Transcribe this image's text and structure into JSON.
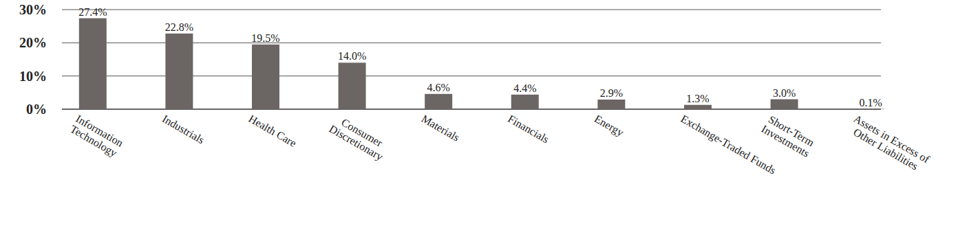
{
  "chart_data": {
    "type": "bar",
    "categories": [
      "Information\nTechnology",
      "Industrials",
      "Health Care",
      "Consumer\nDiscretionary",
      "Materials",
      "Financials",
      "Energy",
      "Exchange-Traded Funds",
      "Short-Term\nInvestments",
      "Assets in Excess of\nOther Liabilities"
    ],
    "values": [
      27.4,
      22.8,
      19.5,
      14.0,
      4.6,
      4.4,
      2.9,
      1.3,
      3.0,
      0.1
    ],
    "value_labels": [
      "27.4%",
      "22.8%",
      "19.5%",
      "14.0%",
      "4.6%",
      "4.4%",
      "2.9%",
      "1.3%",
      "3.0%",
      "0.1%"
    ],
    "color": "#6b6563",
    "ylim": [
      0,
      30
    ],
    "yticks": [
      {
        "value": 0,
        "label": "0%"
      },
      {
        "value": 10,
        "label": "10%"
      },
      {
        "value": 20,
        "label": "20%"
      },
      {
        "value": 30,
        "label": "30%"
      }
    ],
    "grid": true,
    "data_labels": true
  }
}
